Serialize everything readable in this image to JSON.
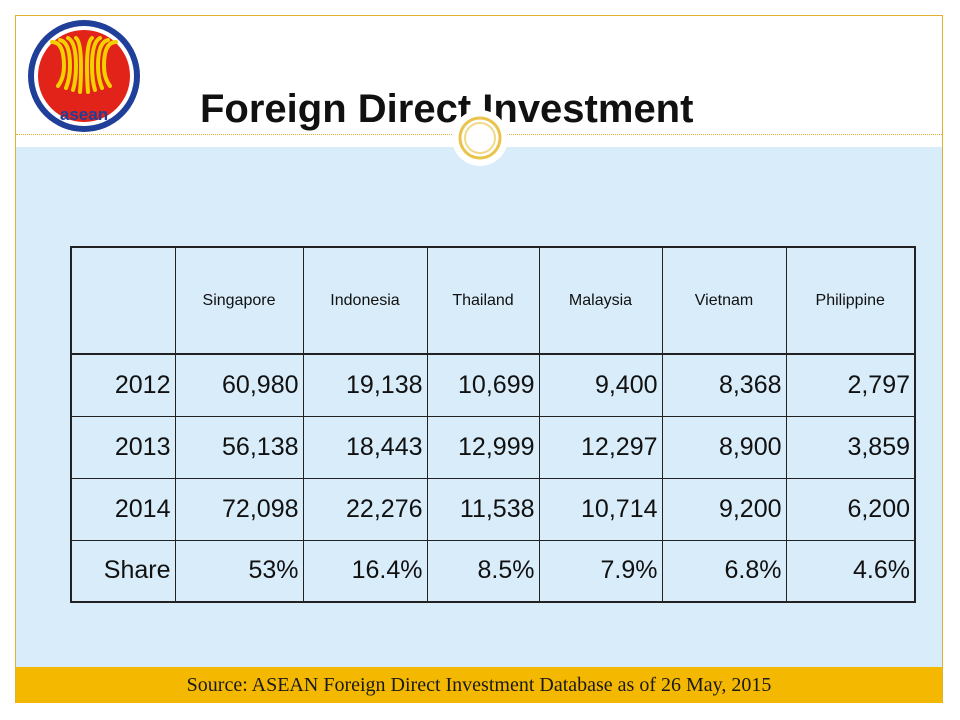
{
  "slide": {
    "title": "Foreign Direct Investment",
    "logo_text": "asean"
  },
  "table": {
    "headers": [
      "",
      "Singapore",
      "Indonesia",
      "Thailand",
      "Malaysia",
      "Vietnam",
      "Philippine"
    ],
    "rows": [
      {
        "label": "2012",
        "values": [
          "60,980",
          "19,138",
          "10,699",
          "9,400",
          "8,368",
          "2,797"
        ]
      },
      {
        "label": "2013",
        "values": [
          "56,138",
          "18,443",
          "12,999",
          "12,297",
          "8,900",
          "3,859"
        ]
      },
      {
        "label": "2014",
        "values": [
          "72,098",
          "22,276",
          "11,538",
          "10,714",
          "9,200",
          "6,200"
        ]
      },
      {
        "label": "Share",
        "values": [
          "53%",
          "16.4%",
          "8.5%",
          "7.9%",
          "6.8%",
          "4.6%"
        ]
      }
    ]
  },
  "footer": {
    "source": "Source: ASEAN Foreign Direct Investment Database as of 26 May, 2015"
  },
  "colors": {
    "panel": "#d8ecf9",
    "accent": "#f5b800",
    "logo_red": "#e2231a",
    "logo_blue": "#1f3f99",
    "logo_yellow": "#f4d000"
  }
}
